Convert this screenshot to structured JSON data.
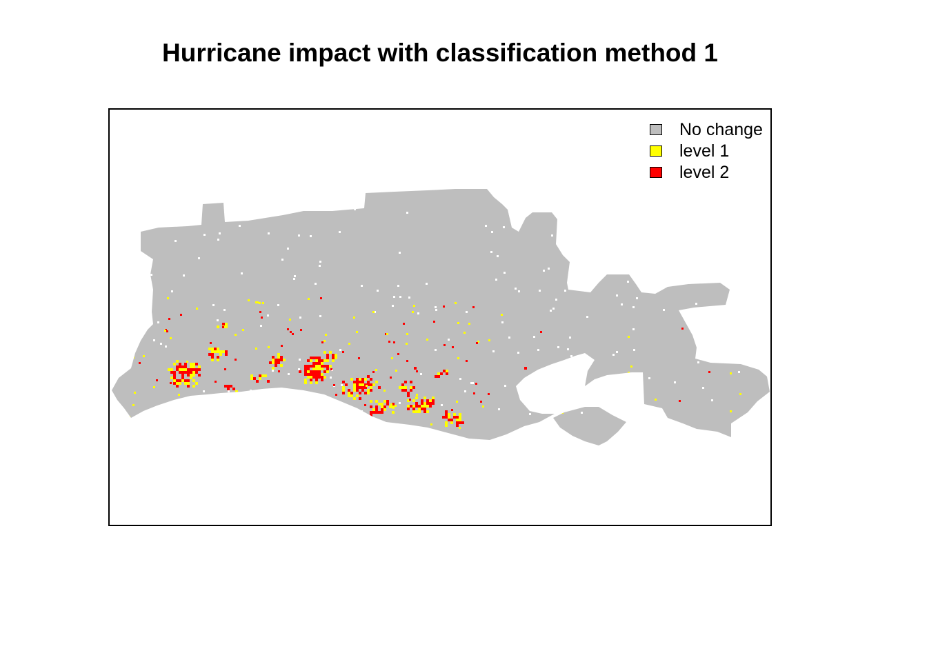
{
  "title": "Hurricane impact with classification method 1",
  "legend": {
    "items": [
      {
        "label": "No change",
        "color": "#bebebe"
      },
      {
        "label": "level 1",
        "color": "#ffff00"
      },
      {
        "label": "level 2",
        "color": "#ff0000"
      }
    ]
  },
  "map": {
    "classes": [
      "No change",
      "level 1",
      "level 2"
    ],
    "colors": {
      "no_change": "#bebebe",
      "level1": "#ffff00",
      "level2": "#ff0000",
      "background": "#ffffff"
    }
  }
}
